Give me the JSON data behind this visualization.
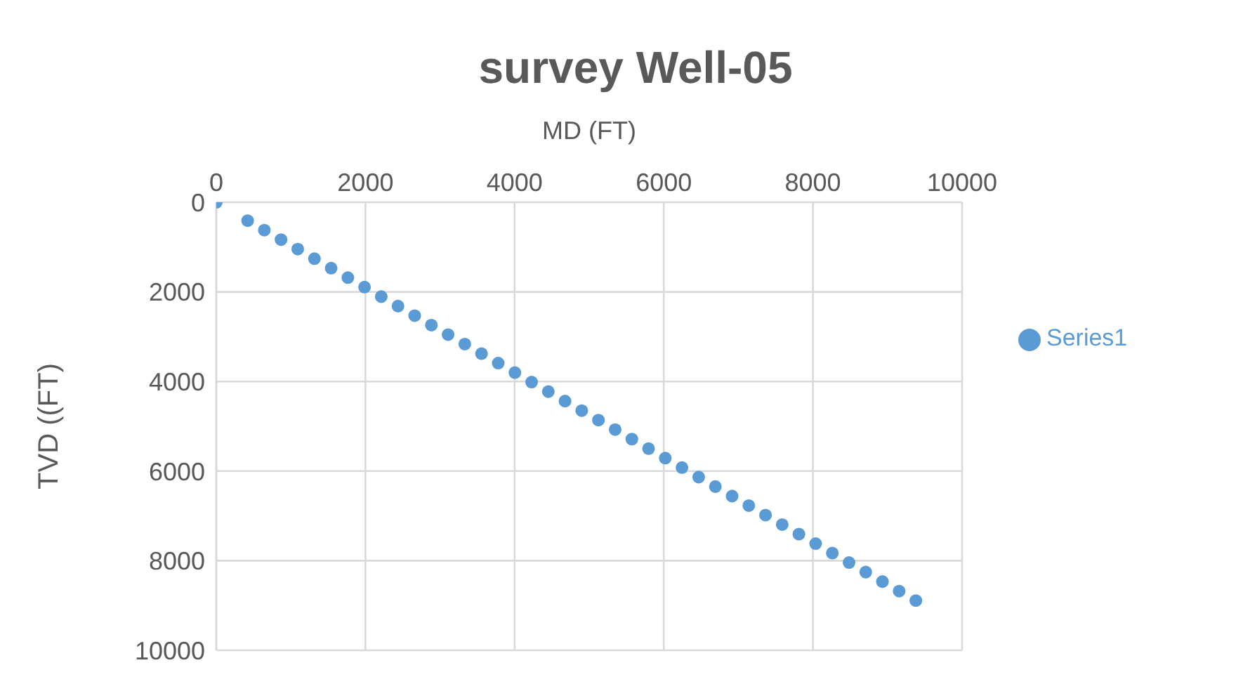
{
  "chart_data": {
    "type": "scatter",
    "title": "survey Well-05",
    "xlabel": "MD (FT)",
    "ylabel": "TVD ((FT)",
    "x": [
      0,
      420,
      644,
      868,
      1092,
      1316,
      1540,
      1764,
      1988,
      2212,
      2436,
      2660,
      2884,
      3108,
      3332,
      3556,
      3780,
      4004,
      4228,
      4452,
      4676,
      4900,
      5124,
      5348,
      5572,
      5796,
      6020,
      6244,
      6468,
      6692,
      6916,
      7140,
      7364,
      7588,
      7812,
      8036,
      8260,
      8484,
      8708,
      8932,
      9156,
      9380
    ],
    "series": [
      {
        "name": "Series1",
        "color": "#5b9bd5",
        "values": [
          0,
          410,
          622,
          834,
          1046,
          1258,
          1470,
          1682,
          1894,
          2106,
          2318,
          2530,
          2742,
          2954,
          3166,
          3378,
          3590,
          3802,
          4014,
          4226,
          4438,
          4650,
          4862,
          5074,
          5286,
          5498,
          5710,
          5922,
          6134,
          6346,
          6558,
          6770,
          6982,
          7194,
          7406,
          7618,
          7830,
          8042,
          8254,
          8466,
          8678,
          8890
        ]
      }
    ],
    "xlim": [
      0,
      10000
    ],
    "xticks": [
      0,
      2000,
      4000,
      6000,
      8000,
      10000
    ],
    "ylim": [
      10000,
      0
    ],
    "yticks": [
      0,
      2000,
      4000,
      6000,
      8000,
      10000
    ],
    "grid": true,
    "legend": "right",
    "marker": "circle"
  }
}
